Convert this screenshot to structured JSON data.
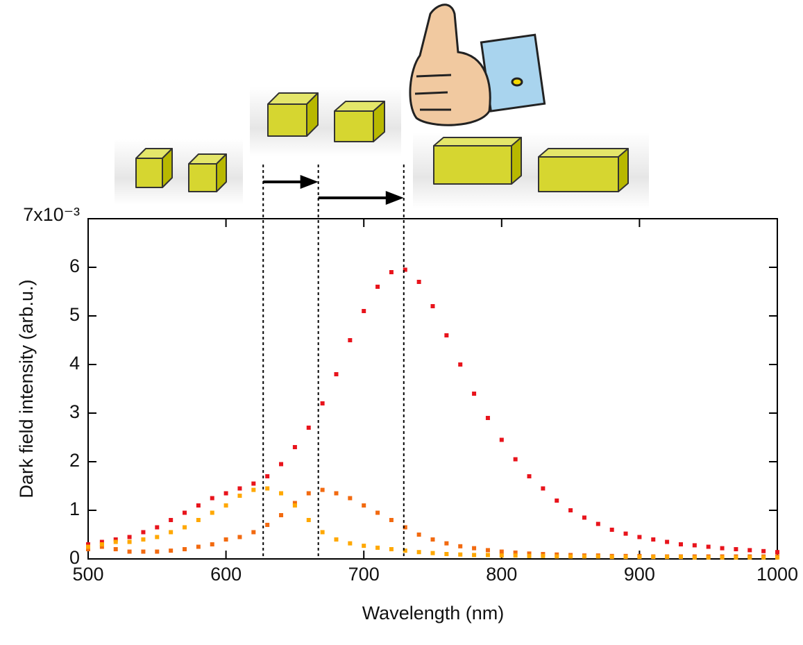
{
  "chart_data": {
    "type": "scatter",
    "xlabel": "Wavelength (nm)",
    "ylabel": "Dark field intensity (arb.u.)",
    "xlim": [
      500,
      1000
    ],
    "xticks": [
      500,
      600,
      700,
      800,
      900,
      1000
    ],
    "ylim": [
      0,
      7
    ],
    "yticks": [
      0,
      1,
      2,
      3,
      4,
      5,
      6,
      {
        "value": 7,
        "label": "7x10⁻³"
      }
    ],
    "markers": [
      627,
      667,
      729
    ],
    "x": [
      500,
      510,
      520,
      530,
      540,
      550,
      560,
      570,
      580,
      590,
      600,
      610,
      620,
      630,
      640,
      650,
      660,
      670,
      680,
      690,
      700,
      710,
      720,
      730,
      740,
      750,
      760,
      770,
      780,
      790,
      800,
      810,
      820,
      830,
      840,
      850,
      860,
      870,
      880,
      890,
      900,
      910,
      920,
      930,
      940,
      950,
      960,
      970,
      980,
      990,
      1000
    ],
    "series": [
      {
        "color": "#e8141c",
        "values": [
          0.3,
          0.35,
          0.4,
          0.45,
          0.55,
          0.65,
          0.8,
          0.95,
          1.1,
          1.25,
          1.35,
          1.45,
          1.55,
          1.7,
          1.95,
          2.3,
          2.7,
          3.2,
          3.8,
          4.5,
          5.1,
          5.6,
          5.9,
          5.95,
          5.7,
          5.2,
          4.6,
          4.0,
          3.4,
          2.9,
          2.45,
          2.05,
          1.7,
          1.45,
          1.2,
          1.0,
          0.85,
          0.72,
          0.6,
          0.52,
          0.45,
          0.4,
          0.35,
          0.3,
          0.28,
          0.25,
          0.22,
          0.2,
          0.18,
          0.16,
          0.14
        ]
      },
      {
        "color": "#f26a10",
        "values": [
          0.2,
          0.25,
          0.2,
          0.15,
          0.15,
          0.15,
          0.17,
          0.2,
          0.25,
          0.3,
          0.4,
          0.45,
          0.55,
          0.7,
          0.9,
          1.15,
          1.35,
          1.42,
          1.35,
          1.25,
          1.1,
          0.95,
          0.8,
          0.65,
          0.5,
          0.4,
          0.32,
          0.26,
          0.22,
          0.18,
          0.15,
          0.13,
          0.11,
          0.1,
          0.09,
          0.08,
          0.07,
          0.07,
          0.06,
          0.06,
          0.06,
          0.05,
          0.05,
          0.05,
          0.05,
          0.05,
          0.05,
          0.05,
          0.05,
          0.05,
          0.05
        ]
      },
      {
        "color": "#ffa800",
        "values": [
          0.25,
          0.3,
          0.35,
          0.35,
          0.4,
          0.45,
          0.55,
          0.65,
          0.8,
          0.95,
          1.1,
          1.3,
          1.42,
          1.45,
          1.35,
          1.1,
          0.8,
          0.55,
          0.4,
          0.32,
          0.27,
          0.23,
          0.2,
          0.17,
          0.14,
          0.12,
          0.1,
          0.09,
          0.08,
          0.08,
          0.07,
          0.07,
          0.06,
          0.06,
          0.05,
          0.05,
          0.05,
          0.05,
          0.04,
          0.04,
          0.04,
          0.04,
          0.04,
          0.04,
          0.03,
          0.03,
          0.03,
          0.03,
          0.03,
          0.03,
          0.03
        ]
      }
    ]
  }
}
